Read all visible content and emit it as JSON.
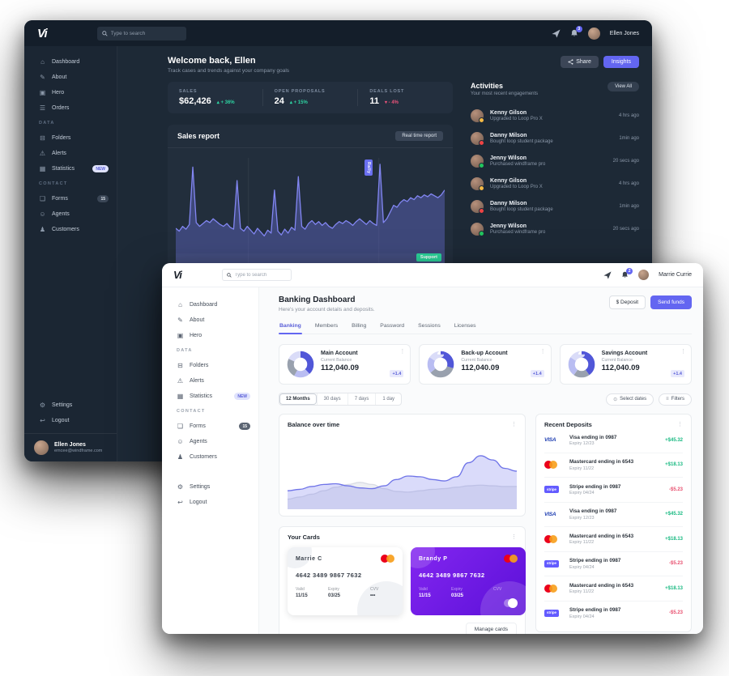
{
  "icons": {
    "home": "⌂",
    "edit": "✎",
    "image": "▣",
    "orders": "☰",
    "folder": "⊟",
    "alert": "⚠",
    "stats": "▦",
    "forms": "❏",
    "agents": "☺",
    "customers": "♟",
    "gear": "⚙",
    "logout": "↩",
    "kebab": "⋮",
    "select_dates": "⊙",
    "filters": "≡"
  },
  "logos": {
    "visa": "VISA",
    "stripe": "stripe"
  },
  "dark": {
    "logo": "Vi",
    "search_placeholder": "Type to search",
    "bell_count": "3",
    "user": "Ellen Jones",
    "sidebar": {
      "items": [
        {
          "type": "link",
          "icon": "home",
          "label": "Dashboard"
        },
        {
          "type": "link",
          "icon": "edit",
          "label": "About"
        },
        {
          "type": "link",
          "icon": "image",
          "label": "Hero"
        },
        {
          "type": "link",
          "icon": "orders",
          "label": "Orders"
        },
        {
          "type": "head",
          "label": "DATA"
        },
        {
          "type": "link",
          "icon": "folder",
          "label": "Folders"
        },
        {
          "type": "link",
          "icon": "alert",
          "label": "Alerts"
        },
        {
          "type": "link",
          "icon": "stats",
          "label": "Statistics",
          "badge": "NEW",
          "bt": "new"
        },
        {
          "type": "head",
          "label": "CONTACT"
        },
        {
          "type": "link",
          "icon": "forms",
          "label": "Forms",
          "badge": "15",
          "bt": "count"
        },
        {
          "type": "link",
          "icon": "agents",
          "label": "Agents"
        },
        {
          "type": "link",
          "icon": "customers",
          "label": "Customers"
        }
      ],
      "footer": [
        {
          "type": "link",
          "icon": "gear",
          "label": "Settings"
        },
        {
          "type": "link",
          "icon": "logout",
          "label": "Logout"
        }
      ],
      "profile": {
        "name": "Ellen Jones",
        "email": "emcee@windframe.com"
      }
    },
    "welcome": {
      "title": "Welcome back, Ellen",
      "subtitle": "Track cases and trends against your company goals"
    },
    "actions": {
      "share": "Share",
      "insights": "Insights"
    },
    "stats": [
      {
        "label": "SALES",
        "value": "$62,426",
        "delta": "▴ + 36%"
      },
      {
        "label": "OPEN PROPOSALS",
        "value": "24",
        "delta": "▴ + 15%"
      },
      {
        "label": "DEALS LOST",
        "value": "11",
        "delta": "▾ - 4%"
      }
    ],
    "sales_report": {
      "title": "Sales report",
      "button": "Real time report",
      "rally_label": "Rally",
      "support_label": "Support"
    },
    "activities": {
      "title": "Activities",
      "subtitle": "Your most recent engagements",
      "view_all": "View All",
      "items": [
        {
          "name": "Kenny Gilson",
          "desc": "Upgraded to Loop Pro X",
          "time": "4 hrs ago",
          "dot": "#f5b945"
        },
        {
          "name": "Danny Milson",
          "desc": "Bought loop student package",
          "time": "1min ago",
          "dot": "#ef4444"
        },
        {
          "name": "Jenny Wilson",
          "desc": "Purchased windframe pro",
          "time": "20 secs ago",
          "dot": "#22c55e"
        },
        {
          "name": "Kenny Gilson",
          "desc": "Upgraded to Loop Pro X",
          "time": "4 hrs ago",
          "dot": "#f5b945"
        },
        {
          "name": "Danny Milson",
          "desc": "Bought loop student package",
          "time": "1min ago",
          "dot": "#ef4444"
        },
        {
          "name": "Jenny Wilson",
          "desc": "Purchased windframe pro",
          "time": "20 secs ago",
          "dot": "#22c55e"
        }
      ]
    }
  },
  "light": {
    "logo": "Vi",
    "search_placeholder": "Type to search",
    "bell_count": "2",
    "user": "Marrie Currie",
    "sidebar": {
      "items": [
        {
          "type": "link",
          "icon": "home",
          "label": "Dashboard"
        },
        {
          "type": "link",
          "icon": "edit",
          "label": "About"
        },
        {
          "type": "link",
          "icon": "image",
          "label": "Hero"
        },
        {
          "type": "head",
          "label": "DATA"
        },
        {
          "type": "link",
          "icon": "folder",
          "label": "Folders"
        },
        {
          "type": "link",
          "icon": "alert",
          "label": "Alerts"
        },
        {
          "type": "link",
          "icon": "stats",
          "label": "Statistics",
          "badge": "NEW",
          "bt": "new"
        },
        {
          "type": "head",
          "label": "CONTACT"
        },
        {
          "type": "link",
          "icon": "forms",
          "label": "Forms",
          "badge": "15",
          "bt": "count"
        },
        {
          "type": "link",
          "icon": "agents",
          "label": "Agents"
        },
        {
          "type": "link",
          "icon": "customers",
          "label": "Customers"
        }
      ],
      "footer": [
        {
          "type": "link",
          "icon": "gear",
          "label": "Settings"
        },
        {
          "type": "link",
          "icon": "logout",
          "label": "Logout"
        }
      ]
    },
    "header": {
      "title": "Banking Dashboard",
      "subtitle": "Here's your account details and deposits.",
      "deposit": "$ Deposit",
      "send": "Send funds"
    },
    "tabs": [
      {
        "label": "Banking",
        "active": "true"
      },
      {
        "label": "Members"
      },
      {
        "label": "Billing"
      },
      {
        "label": "Password"
      },
      {
        "label": "Sessions"
      },
      {
        "label": "Licenses"
      }
    ],
    "accounts": [
      {
        "name": "Main Account",
        "balance_label": "Current Balance",
        "balance": "112,040.09",
        "delta": "+1.4"
      },
      {
        "name": "Back-up Account",
        "balance_label": "Current Balance",
        "balance": "112,040.09",
        "delta": "+1.4"
      },
      {
        "name": "Savings Account",
        "balance_label": "Current Balance",
        "balance": "112,040.09",
        "delta": "+1.4"
      }
    ],
    "range_tabs": [
      {
        "label": "12 Months",
        "active": "true"
      },
      {
        "label": "30 days"
      },
      {
        "label": "7 days"
      },
      {
        "label": "1 day"
      }
    ],
    "filter_buttons": {
      "select_dates": "Select dates",
      "filters": "Filters"
    },
    "balance_chart_title": "Balance over time",
    "deposits": {
      "title": "Recent Deposits",
      "items": [
        {
          "brand": "visa",
          "title": "Visa ending in 0987",
          "sub": "Expiry 12/23",
          "amount": "+$45.32",
          "dir": "plus"
        },
        {
          "brand": "mastercard",
          "title": "Mastercard ending in 6543",
          "sub": "Expiry 11/22",
          "amount": "+$18.13",
          "dir": "plus"
        },
        {
          "brand": "stripe",
          "title": "Stripe ending in 0987",
          "sub": "Expiry 04/24",
          "amount": "-$5.23",
          "dir": "minus"
        },
        {
          "brand": "visa",
          "title": "Visa ending in 0987",
          "sub": "Expiry 12/23",
          "amount": "+$45.32",
          "dir": "plus"
        },
        {
          "brand": "mastercard",
          "title": "Mastercard ending in 6543",
          "sub": "Expiry 11/22",
          "amount": "+$18.13",
          "dir": "plus"
        },
        {
          "brand": "stripe",
          "title": "Stripe ending in 0987",
          "sub": "Expiry 04/24",
          "amount": "-$5.23",
          "dir": "minus"
        },
        {
          "brand": "mastercard",
          "title": "Mastercard ending in 6543",
          "sub": "Expiry 11/22",
          "amount": "+$18.13",
          "dir": "plus"
        },
        {
          "brand": "stripe",
          "title": "Stripe ending in 0987",
          "sub": "Expiry 04/24",
          "amount": "-$5.23",
          "dir": "minus"
        }
      ]
    },
    "cards": {
      "title": "Your Cards",
      "manage": "Manage cards",
      "items": [
        {
          "theme": "light",
          "name": "Marrie C",
          "number": "4642 3489 9867 7632",
          "valid_label": "Valid",
          "valid": "11/15",
          "expiry_label": "Expiry",
          "expiry": "03/25",
          "cvv_label": "CVV",
          "cvv": "•••"
        },
        {
          "theme": "purple",
          "name": "Brandy P",
          "number": "4642 3489 9867 7632",
          "valid_label": "Valid",
          "valid": "11/15",
          "expiry_label": "Expiry",
          "expiry": "03/25",
          "cvv_label": "CVV",
          "cvv": "•••"
        }
      ]
    }
  },
  "chart_data": {
    "sales_report": {
      "type": "line",
      "title": "Sales report",
      "annotations": [
        "Rally",
        "Support"
      ],
      "line_color": "#8286f2",
      "fill_color": "rgba(116,120,239,0.35)",
      "ylim": [
        0,
        100
      ],
      "values": [
        28,
        25,
        30,
        27,
        32,
        92,
        34,
        30,
        33,
        36,
        34,
        38,
        35,
        32,
        30,
        33,
        29,
        27,
        78,
        28,
        25,
        30,
        26,
        22,
        28,
        24,
        20,
        26,
        23,
        68,
        25,
        21,
        27,
        23,
        29,
        26,
        82,
        30,
        27,
        33,
        36,
        32,
        35,
        31,
        34,
        30,
        28,
        32,
        35,
        33,
        36,
        34,
        31,
        35,
        38,
        35,
        32,
        36,
        33,
        31,
        95,
        34,
        38,
        45,
        52,
        50,
        55,
        58,
        56,
        60,
        58,
        62,
        60,
        63,
        61,
        64,
        62,
        60,
        63,
        68
      ]
    },
    "balance_over_time": {
      "type": "area",
      "title": "Balance over time",
      "ylim": [
        0,
        100
      ],
      "series": [
        {
          "name": "secondary",
          "color": "#d9dce4",
          "fill": "rgba(215,219,228,0.45)",
          "values": [
            10,
            13,
            17,
            22,
            27,
            31,
            34,
            31,
            25,
            21,
            20,
            22,
            24,
            25,
            27,
            29,
            30,
            29,
            28,
            28
          ]
        },
        {
          "name": "balance",
          "color": "#6f74e8",
          "fill": "rgba(122,126,238,0.28)",
          "values": [
            22,
            24,
            28,
            31,
            32,
            29,
            26,
            25,
            29,
            38,
            43,
            42,
            38,
            36,
            42,
            62,
            72,
            66,
            54,
            50
          ]
        }
      ]
    },
    "account_donuts": {
      "type": "donut",
      "donuts": [
        {
          "account": "Main Account",
          "segments": [
            {
              "color": "#5157d8",
              "value": 38
            },
            {
              "color": "#b9bdf2",
              "value": 20
            },
            {
              "color": "#99a1ae",
              "value": 24
            },
            {
              "color": "#dadcf8",
              "value": 18
            }
          ]
        },
        {
          "account": "Back-up Account",
          "segments": [
            {
              "color": "#5157d8",
              "value": 30
            },
            {
              "color": "#99a1ae",
              "value": 34
            },
            {
              "color": "#b9bdf2",
              "value": 20
            },
            {
              "color": "#dadcf8",
              "value": 16
            }
          ]
        },
        {
          "account": "Savings Account",
          "segments": [
            {
              "color": "#5157d8",
              "value": 40
            },
            {
              "color": "#99a1ae",
              "value": 20
            },
            {
              "color": "#b9bdf2",
              "value": 24
            },
            {
              "color": "#dadcf8",
              "value": 16
            }
          ]
        }
      ]
    }
  }
}
